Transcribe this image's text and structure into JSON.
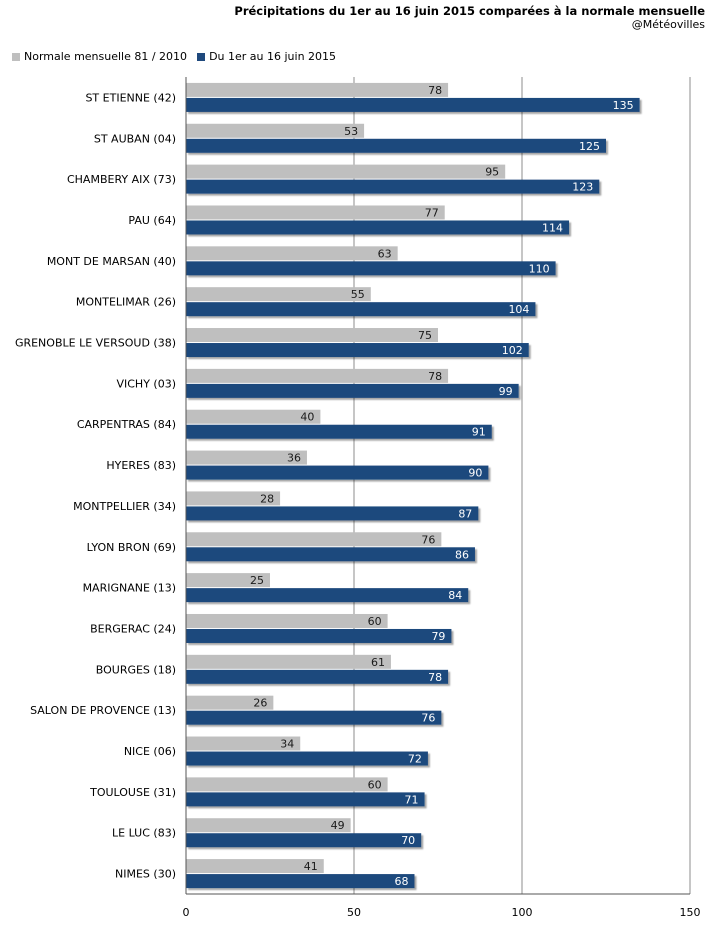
{
  "chart_data": {
    "type": "bar",
    "orientation": "horizontal",
    "title": "Précipitations du 1er au 16 juin 2015 comparées à la normale mensuelle",
    "subtitle": "@Météovilles",
    "categories": [
      "ST ETIENNE (42)",
      "ST AUBAN (04)",
      "CHAMBERY AIX (73)",
      "PAU (64)",
      "MONT DE MARSAN (40)",
      "MONTELIMAR (26)",
      "GRENOBLE LE VERSOUD (38)",
      "VICHY (03)",
      "CARPENTRAS (84)",
      "HYERES (83)",
      "MONTPELLIER (34)",
      "LYON BRON (69)",
      "MARIGNANE (13)",
      "BERGERAC (24)",
      "BOURGES (18)",
      "SALON DE PROVENCE (13)",
      "NICE (06)",
      "TOULOUSE (31)",
      "LE LUC (83)",
      "NIMES (30)"
    ],
    "series": [
      {
        "name": "Normale mensuelle 81 / 2010",
        "color": "#bfbfbf",
        "values": [
          78,
          53,
          95,
          77,
          63,
          55,
          75,
          78,
          40,
          36,
          28,
          76,
          25,
          60,
          61,
          26,
          34,
          60,
          49,
          41
        ]
      },
      {
        "name": "Du 1er au 16 juin 2015",
        "color": "#1f497d",
        "values": [
          135,
          125,
          123,
          114,
          110,
          104,
          102,
          99,
          91,
          90,
          87,
          86,
          84,
          79,
          78,
          76,
          72,
          71,
          70,
          68
        ]
      }
    ],
    "xlim": [
      0,
      150
    ],
    "xticks": [
      0,
      50,
      100,
      150
    ],
    "grid": true,
    "legend_position": "top-left"
  }
}
